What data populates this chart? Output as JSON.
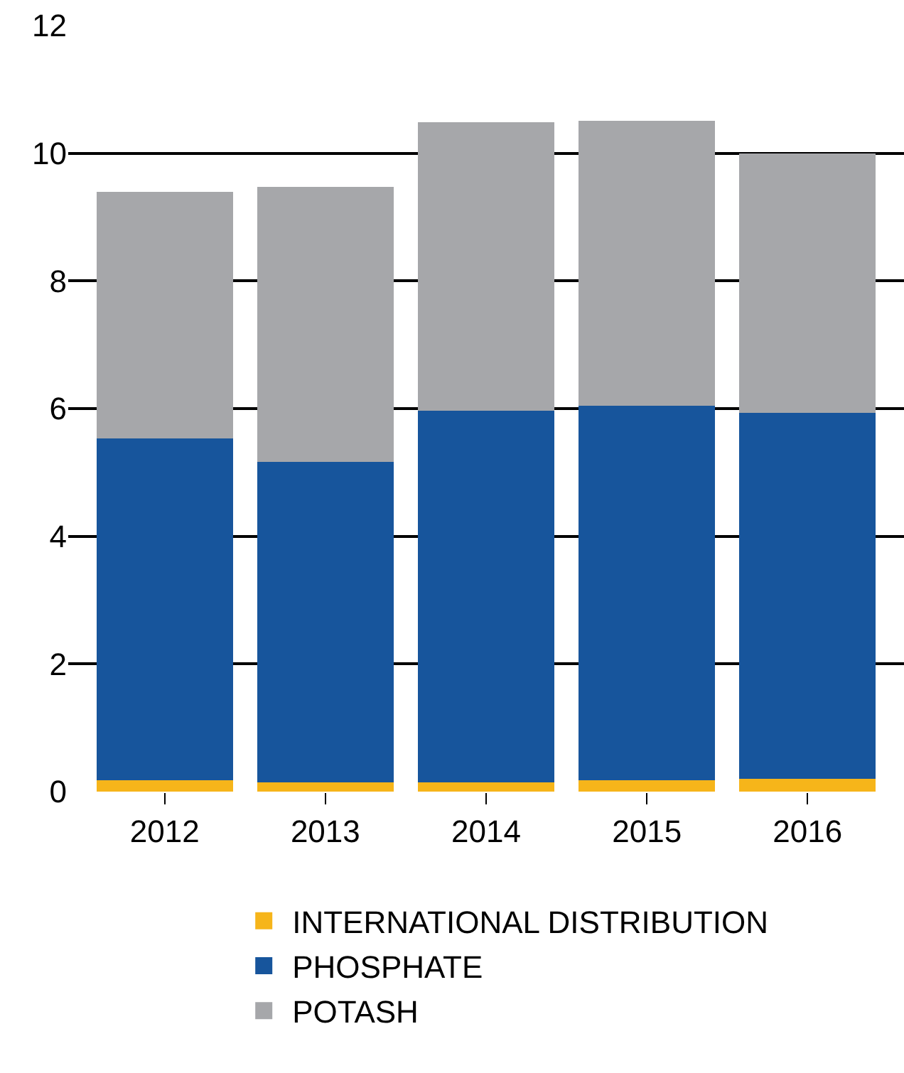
{
  "chart_data": {
    "type": "bar",
    "stacked": true,
    "categories": [
      "2012",
      "2013",
      "2014",
      "2015",
      "2016"
    ],
    "series": [
      {
        "name": "INTERNATIONAL DISTRIBUTION",
        "color": "#f6b51a",
        "values": [
          0.18,
          0.15,
          0.15,
          0.18,
          0.2
        ]
      },
      {
        "name": "PHOSPHATE",
        "color": "#17559c",
        "values": [
          5.35,
          5.02,
          5.82,
          5.87,
          5.73
        ]
      },
      {
        "name": "POTASH",
        "color": "#a6a7aa",
        "values": [
          3.87,
          4.3,
          4.52,
          4.46,
          4.07
        ]
      }
    ],
    "ylim": [
      0,
      12
    ],
    "yticks": [
      0,
      2,
      4,
      6,
      8,
      10,
      12
    ],
    "grid": "y",
    "legend": "bottom"
  }
}
